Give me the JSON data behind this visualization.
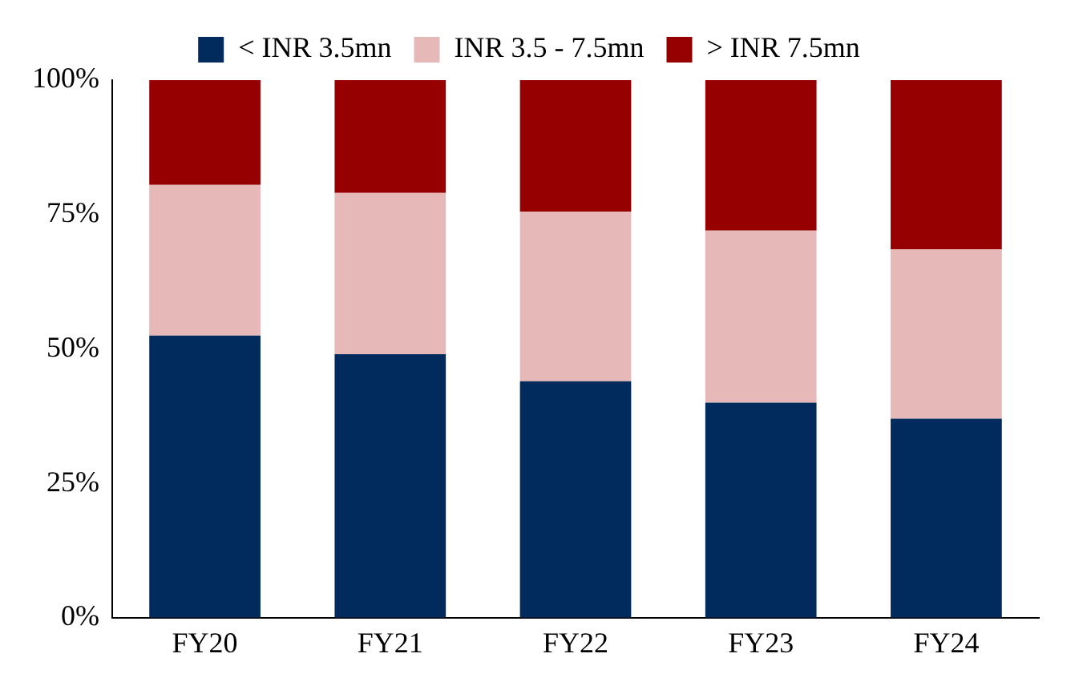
{
  "chart_data": {
    "type": "bar",
    "stacked": true,
    "categories": [
      "FY20",
      "FY21",
      "FY22",
      "FY23",
      "FY24"
    ],
    "series": [
      {
        "name": "< INR 3.5mn",
        "color": "#002b5c",
        "values": [
          52.5,
          49,
          44,
          40,
          37
        ]
      },
      {
        "name": "INR 3.5 - 7.5mn",
        "color": "#e6b8b7",
        "values": [
          28,
          30,
          31.5,
          32,
          31.5
        ]
      },
      {
        "name": "> INR 7.5mn",
        "color": "#960000",
        "values": [
          19.5,
          21,
          24.5,
          28,
          31.5
        ]
      }
    ],
    "ylim": [
      0,
      100
    ],
    "yticks": [
      {
        "value": 0,
        "label": "0%"
      },
      {
        "value": 25,
        "label": "25%"
      },
      {
        "value": 50,
        "label": "50%"
      },
      {
        "value": 75,
        "label": "75%"
      },
      {
        "value": 100,
        "label": "100%"
      }
    ],
    "grid": false,
    "legend": "top"
  }
}
